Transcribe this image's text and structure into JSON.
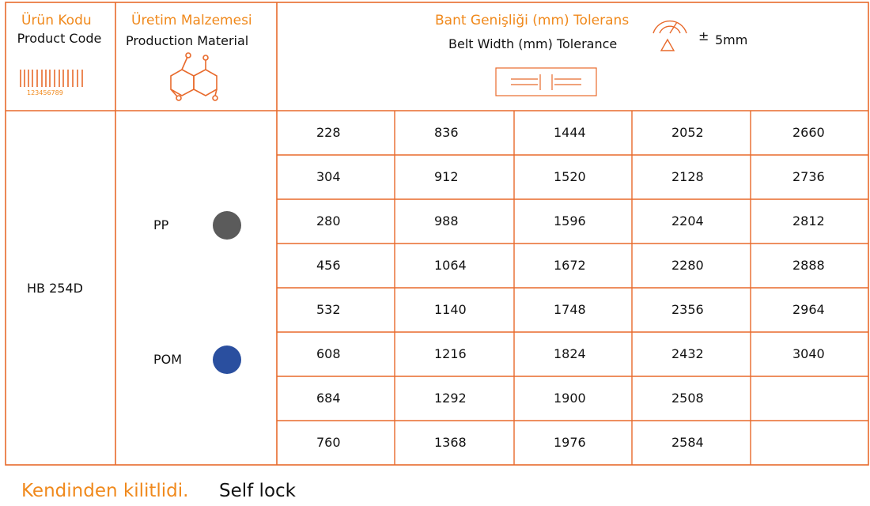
{
  "header": {
    "product_code": {
      "title_tr": "Ürün Kodu",
      "title_en": "Product Code",
      "barcode_number": "123456789"
    },
    "material": {
      "title_tr": "Üretim Malzemesi",
      "title_en": "Production Material"
    },
    "width": {
      "title_tr": "Bant Genişliği (mm) Tolerans",
      "title_en": "Belt Width (mm) Tolerance",
      "tolerance_sign": "±",
      "tolerance": "5mm"
    }
  },
  "body": {
    "product_code": "HB 254D",
    "materials": [
      {
        "name": "PP",
        "color": "#5b5b5b"
      },
      {
        "name": "POM",
        "color": "#2a4f9f"
      }
    ],
    "widths": [
      [
        228,
        304,
        280,
        456,
        532,
        608,
        684,
        760
      ],
      [
        836,
        912,
        988,
        1064,
        1140,
        1216,
        1292,
        1368
      ],
      [
        1444,
        1520,
        1596,
        1672,
        1748,
        1824,
        1900,
        1976
      ],
      [
        2052,
        2128,
        2204,
        2280,
        2356,
        2432,
        2508,
        2584
      ],
      [
        2660,
        2736,
        2812,
        2888,
        2964,
        3040
      ]
    ]
  },
  "footer": {
    "note_tr": "Kendinden kilitlidi.",
    "note_en": "Self lock"
  }
}
